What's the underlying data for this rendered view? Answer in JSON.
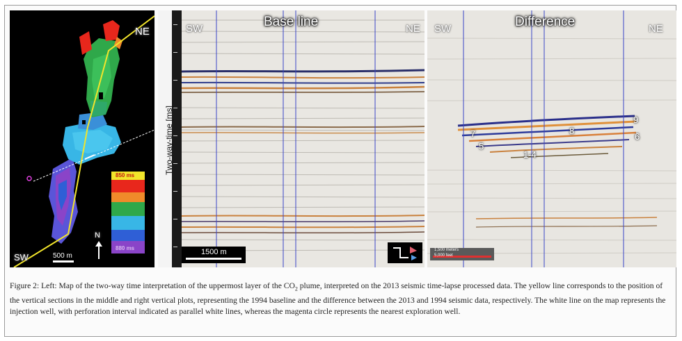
{
  "map": {
    "label_ne": "NE",
    "label_sw": "SW",
    "label_n": "N",
    "scale": "500 m",
    "legend_top": "850 ms",
    "legend_bottom": "880 ms",
    "colors": {
      "red": "#e8271c",
      "green": "#2fa84a",
      "cyan": "#38b6e6",
      "blue": "#2f5fd6",
      "purple": "#8a44c8",
      "yellow": "#f2e52b"
    }
  },
  "baseline": {
    "title": "Base line",
    "label_sw": "SW",
    "label_ne": "NE",
    "scale": "1500 m",
    "axis_label": "Two-way-time [ms]"
  },
  "difference": {
    "title": "Difference",
    "label_sw": "SW",
    "label_ne": "NE",
    "horizons": [
      "9",
      "7",
      "8",
      "6",
      "5",
      "1-4"
    ],
    "scale_line1": "1,500 meters",
    "scale_line2": "5,000 feet"
  },
  "caption": {
    "part1": "Figure 2: Left: Map of the two-way time interpretation of the uppermost layer of the CO",
    "sub": "2",
    "part2": " plume, interpreted on the 2013 seismic time-lapse processed data. The yellow line corresponds to the position of the vertical sections in the middle and right vertical plots, representing the 1994 baseline and the difference between the 2013 and 1994 seismic data, respectively. The white line on the map represents the injection well, with perforation interval indicated as parallel white lines, whereas the magenta circle represents the nearest exploration well."
  }
}
